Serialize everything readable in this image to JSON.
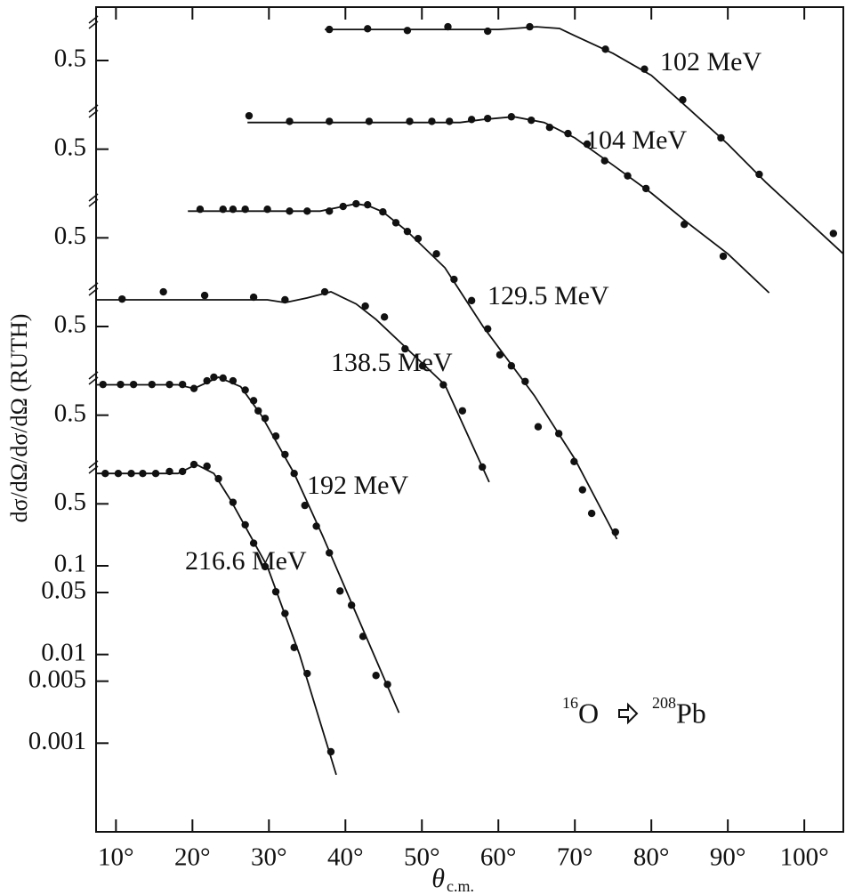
{
  "chart_data": [
    {
      "type": "line",
      "label": "102 MeV",
      "log_y": true,
      "xlim": [
        7.4,
        105.1
      ],
      "ylim": [
        1e-09,
        2
      ],
      "xticks": [
        {
          "value": 10,
          "label": "10°"
        },
        {
          "value": 20,
          "label": "20°"
        },
        {
          "value": 30,
          "label": "30°"
        },
        {
          "value": 40,
          "label": "40°"
        },
        {
          "value": 50,
          "label": "50°"
        },
        {
          "value": 60,
          "label": "60°"
        },
        {
          "value": 70,
          "label": "70°"
        },
        {
          "value": 80,
          "label": "80°"
        },
        {
          "value": 90,
          "label": "90°"
        },
        {
          "value": 100,
          "label": "100°"
        }
      ],
      "xlabel": {
        "symbol": "θ",
        "subscript": "c.m."
      },
      "ylabel": "dσ/dΩ/dσ/dΩ (RUTH)",
      "annotation": {
        "projectile_mass": "16",
        "projectile": "O",
        "target_mass": "208",
        "target": "Pb"
      },
      "yticks": [
        0.5
      ],
      "points": {
        "x": [
          37.9,
          42.9,
          48.1,
          53.4,
          58.6,
          64.1,
          74,
          79.1,
          84.1,
          89.1,
          94.1,
          103.8
        ],
        "values": [
          1.12,
          1.14,
          1.09,
          1.2,
          1.07,
          1.2,
          0.67,
          0.4,
          0.18,
          0.067,
          0.026,
          0.0056
        ]
      },
      "fit": {
        "x": [
          37.3,
          50,
          60,
          62,
          65,
          68,
          70,
          75,
          80,
          85,
          90,
          95,
          100,
          105.1
        ],
        "values": [
          1.12,
          1.12,
          1.12,
          1.15,
          1.2,
          1.15,
          0.95,
          0.6,
          0.34,
          0.14,
          0.057,
          0.021,
          0.0084,
          0.0033
        ]
      }
    },
    {
      "type": "line",
      "label": "104 MeV",
      "log_y": true,
      "xlim": [
        7.4,
        105.1
      ],
      "ylim": [
        1e-08,
        20
      ],
      "yticks": [
        0.5
      ],
      "points": {
        "x": [
          27.4,
          32.7,
          37.9,
          43.1,
          48.4,
          51.3,
          53.6,
          56.5,
          58.6,
          61.7,
          64.3,
          66.7,
          69.1,
          71.6,
          73.9,
          76.9,
          79.3,
          84.3,
          89.4
        ],
        "values": [
          1.19,
          1.03,
          1.03,
          1.03,
          1.03,
          1.03,
          1.03,
          1.08,
          1.11,
          1.16,
          1.06,
          0.88,
          0.75,
          0.57,
          0.37,
          0.25,
          0.18,
          0.071,
          0.031
        ]
      },
      "fit": {
        "x": [
          27.2,
          40,
          55,
          58,
          62,
          66,
          70,
          75,
          80,
          85,
          90,
          95.4
        ],
        "values": [
          1.0,
          1.0,
          1.0,
          1.08,
          1.16,
          1.0,
          0.67,
          0.33,
          0.16,
          0.071,
          0.033,
          0.012
        ]
      }
    },
    {
      "type": "line",
      "label": "129.5 MeV",
      "log_y": true,
      "xlim": [
        7.4,
        105.1
      ],
      "ylim": [
        1e-07,
        200
      ],
      "yticks": [
        0.5
      ],
      "points": {
        "x": [
          21.0,
          24.0,
          25.3,
          26.9,
          29.8,
          32.7,
          35.0,
          37.9,
          39.7,
          41.4,
          42.9,
          44.9,
          46.6,
          48.1,
          49.5,
          51.9,
          54.2,
          56.5,
          58.6,
          60.2,
          61.7,
          63.5,
          65.2,
          67.9,
          69.9,
          71.0,
          72.2,
          75.3
        ],
        "values": [
          1.05,
          1.05,
          1.05,
          1.05,
          1.05,
          1.0,
          1.0,
          1.0,
          1.13,
          1.21,
          1.18,
          0.98,
          0.74,
          0.59,
          0.49,
          0.33,
          0.17,
          0.098,
          0.047,
          0.024,
          0.018,
          0.012,
          0.0037,
          0.0031,
          0.0015,
          0.00072,
          0.00039,
          0.00024
        ]
      },
      "fit": {
        "x": [
          19.4,
          30,
          36.7,
          39,
          41.4,
          43,
          44.9,
          48,
          53,
          58,
          64.7,
          70,
          75.5
        ],
        "values": [
          1.0,
          1.0,
          1.0,
          1.1,
          1.21,
          1.15,
          0.98,
          0.6,
          0.23,
          0.05,
          0.0083,
          0.0016,
          0.0002
        ]
      }
    },
    {
      "type": "line",
      "label": "138.5 MeV",
      "log_y": true,
      "xlim": [
        7.4,
        105.1
      ],
      "ylim": [
        1e-06,
        2000
      ],
      "yticks": [
        0.5
      ],
      "points": {
        "x": [
          10.8,
          16.2,
          21.6,
          28.0,
          32.1,
          37.3,
          42.6,
          45.1,
          47.8,
          50.1,
          52.8,
          55.3,
          57.9
        ],
        "values": [
          1.02,
          1.23,
          1.12,
          1.07,
          1.0,
          1.23,
          0.85,
          0.64,
          0.28,
          0.18,
          0.11,
          0.056,
          0.013
        ]
      },
      "fit": {
        "x": [
          7.4,
          20,
          29.8,
          32.1,
          35,
          38.1,
          41.4,
          44,
          47.2,
          53,
          58.8
        ],
        "values": [
          1.0,
          1.0,
          1.0,
          0.93,
          1.05,
          1.23,
          0.9,
          0.6,
          0.33,
          0.11,
          0.0088
        ]
      }
    },
    {
      "type": "line",
      "label": "192 MeV",
      "log_y": true,
      "xlim": [
        7.4,
        105.1
      ],
      "ylim": [
        1e-05,
        20000
      ],
      "yticks": [
        0.5
      ],
      "points": {
        "x": [
          8.3,
          10.6,
          12.3,
          14.7,
          17.0,
          18.7,
          20.2,
          21.9,
          22.8,
          24.0,
          25.3,
          26.9,
          28.0,
          28.6,
          29.5,
          30.9,
          32.1,
          33.3,
          34.7,
          36.2,
          37.9,
          39.3,
          40.8,
          42.3,
          44.0,
          45.5
        ],
        "values": [
          1.11,
          1.11,
          1.11,
          1.11,
          1.11,
          1.11,
          1.0,
          1.22,
          1.34,
          1.31,
          1.22,
          0.96,
          0.73,
          0.56,
          0.46,
          0.29,
          0.18,
          0.11,
          0.048,
          0.028,
          0.014,
          0.0052,
          0.0036,
          0.0016,
          0.00058,
          0.00046
        ]
      },
      "fit": {
        "x": [
          7.4,
          18.1,
          20.2,
          23.4,
          26.3,
          29,
          33.3,
          37,
          41.4,
          47
        ],
        "values": [
          1.1,
          1.1,
          1.0,
          1.34,
          1.05,
          0.5,
          0.11,
          0.022,
          0.0029,
          0.00022
        ]
      }
    },
    {
      "type": "line",
      "label": "216.6 MeV",
      "log_y": true,
      "xlim": [
        7.4,
        105.1
      ],
      "ylim": [
        0.0001,
        200000
      ],
      "yticks": [
        0.5,
        0.1,
        0.05,
        0.01,
        0.005,
        0.001
      ],
      "points": {
        "x": [
          8.6,
          10.3,
          12.0,
          13.5,
          15.2,
          17.0,
          18.7,
          20.2,
          21.9,
          23.4,
          25.3,
          26.9,
          28.0,
          29.5,
          30.9,
          32.1,
          33.3,
          35.0,
          38.1
        ],
        "values": [
          1.1,
          1.1,
          1.1,
          1.1,
          1.1,
          1.16,
          1.16,
          1.39,
          1.33,
          0.96,
          0.52,
          0.29,
          0.18,
          0.098,
          0.051,
          0.029,
          0.012,
          0.0061,
          0.0008
        ]
      },
      "fit": {
        "x": [
          7.4,
          18.1,
          20.5,
          22.8,
          25,
          29.8,
          34,
          38.8
        ],
        "values": [
          1.1,
          1.1,
          1.39,
          1.1,
          0.55,
          0.098,
          0.01,
          0.00044
        ]
      }
    }
  ]
}
